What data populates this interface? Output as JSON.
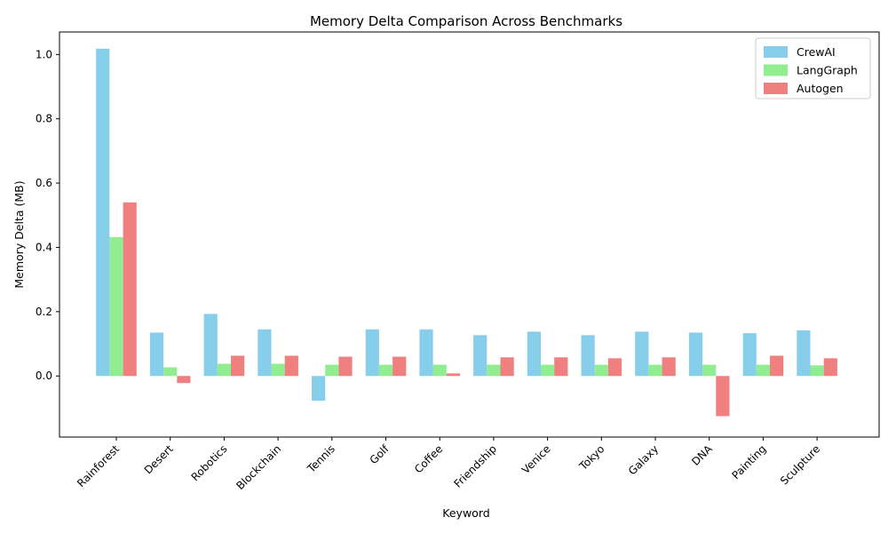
{
  "chart_data": {
    "type": "bar",
    "title": "Memory Delta Comparison Across Benchmarks",
    "xlabel": "Keyword",
    "ylabel": "Memory Delta (MB)",
    "ylim": [
      -0.19,
      1.07
    ],
    "yticks": [
      0.0,
      0.2,
      0.4,
      0.6,
      0.8,
      1.0
    ],
    "ytick_labels": [
      "0.0",
      "0.2",
      "0.4",
      "0.6",
      "0.8",
      "1.0"
    ],
    "categories": [
      "Rainforest",
      "Desert",
      "Robotics",
      "Blockchain",
      "Tennis",
      "Golf",
      "Coffee",
      "Friendship",
      "Venice",
      "Tokyo",
      "Galaxy",
      "DNA",
      "Painting",
      "Sculpture"
    ],
    "series": [
      {
        "name": "CrewAI",
        "color": "#87ceeb",
        "values": [
          1.018,
          0.135,
          0.193,
          0.145,
          -0.077,
          0.145,
          0.145,
          0.127,
          0.138,
          0.127,
          0.138,
          0.135,
          0.133,
          0.142
        ]
      },
      {
        "name": "LangGraph",
        "color": "#90ee90",
        "values": [
          0.432,
          0.027,
          0.038,
          0.038,
          0.035,
          0.035,
          0.035,
          0.035,
          0.035,
          0.035,
          0.035,
          0.035,
          0.035,
          0.033
        ]
      },
      {
        "name": "Autogen",
        "color": "#f08080",
        "values": [
          0.54,
          -0.022,
          0.063,
          0.063,
          0.06,
          0.06,
          0.008,
          0.058,
          0.058,
          0.055,
          0.058,
          -0.125,
          0.063,
          0.055
        ]
      }
    ],
    "legend_position": "top-right",
    "grid": false
  }
}
